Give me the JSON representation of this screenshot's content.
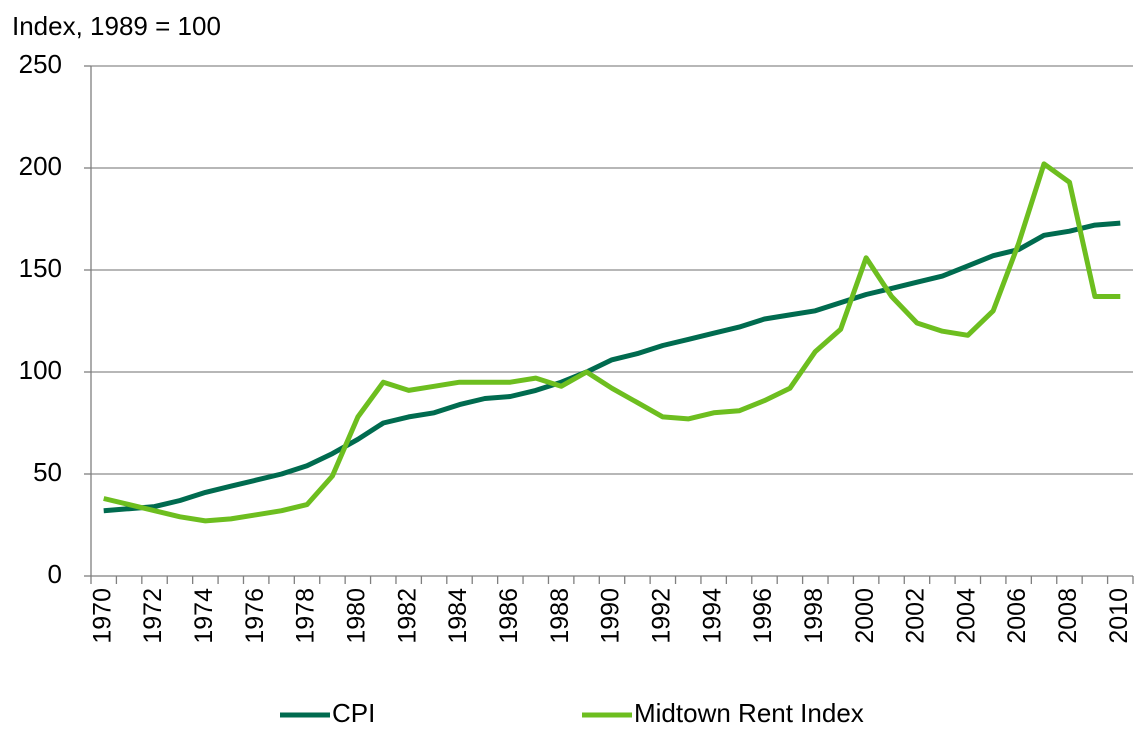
{
  "chart_data": {
    "type": "line",
    "y_axis_label": "Index, 1989 = 100",
    "categories": [
      "1970",
      null,
      "1972",
      null,
      "1974",
      null,
      "1976",
      null,
      "1978",
      null,
      "1980",
      null,
      "1982",
      null,
      "1984",
      null,
      "1986",
      null,
      "1988",
      null,
      "1990",
      null,
      "1992",
      null,
      "1994",
      null,
      "1996",
      null,
      "1998",
      null,
      "2000",
      null,
      "2002",
      null,
      "2004",
      null,
      "2006",
      null,
      "2008",
      null,
      "2010"
    ],
    "series": [
      {
        "name": "CPI",
        "color": "#006b4f",
        "values": [
          32,
          33,
          34,
          37,
          41,
          44,
          47,
          50,
          54,
          60,
          67,
          75,
          78,
          80,
          84,
          87,
          88,
          91,
          95,
          100,
          106,
          109,
          113,
          116,
          119,
          122,
          126,
          128,
          130,
          134,
          138,
          141,
          144,
          147,
          152,
          157,
          160,
          167,
          169,
          172,
          173
        ]
      },
      {
        "name": "Midtown Rent Index",
        "color": "#6dbe1f",
        "values": [
          38,
          35,
          32,
          29,
          27,
          28,
          30,
          32,
          35,
          49,
          78,
          95,
          91,
          93,
          95,
          95,
          95,
          97,
          93,
          100,
          92,
          85,
          78,
          77,
          80,
          81,
          86,
          92,
          110,
          121,
          156,
          137,
          124,
          120,
          118,
          130,
          163,
          202,
          193,
          137,
          137
        ]
      }
    ],
    "ylim": [
      0,
      250
    ],
    "yticks": [
      0,
      50,
      100,
      150,
      200,
      250
    ],
    "grid": true,
    "legend": "bottom"
  }
}
